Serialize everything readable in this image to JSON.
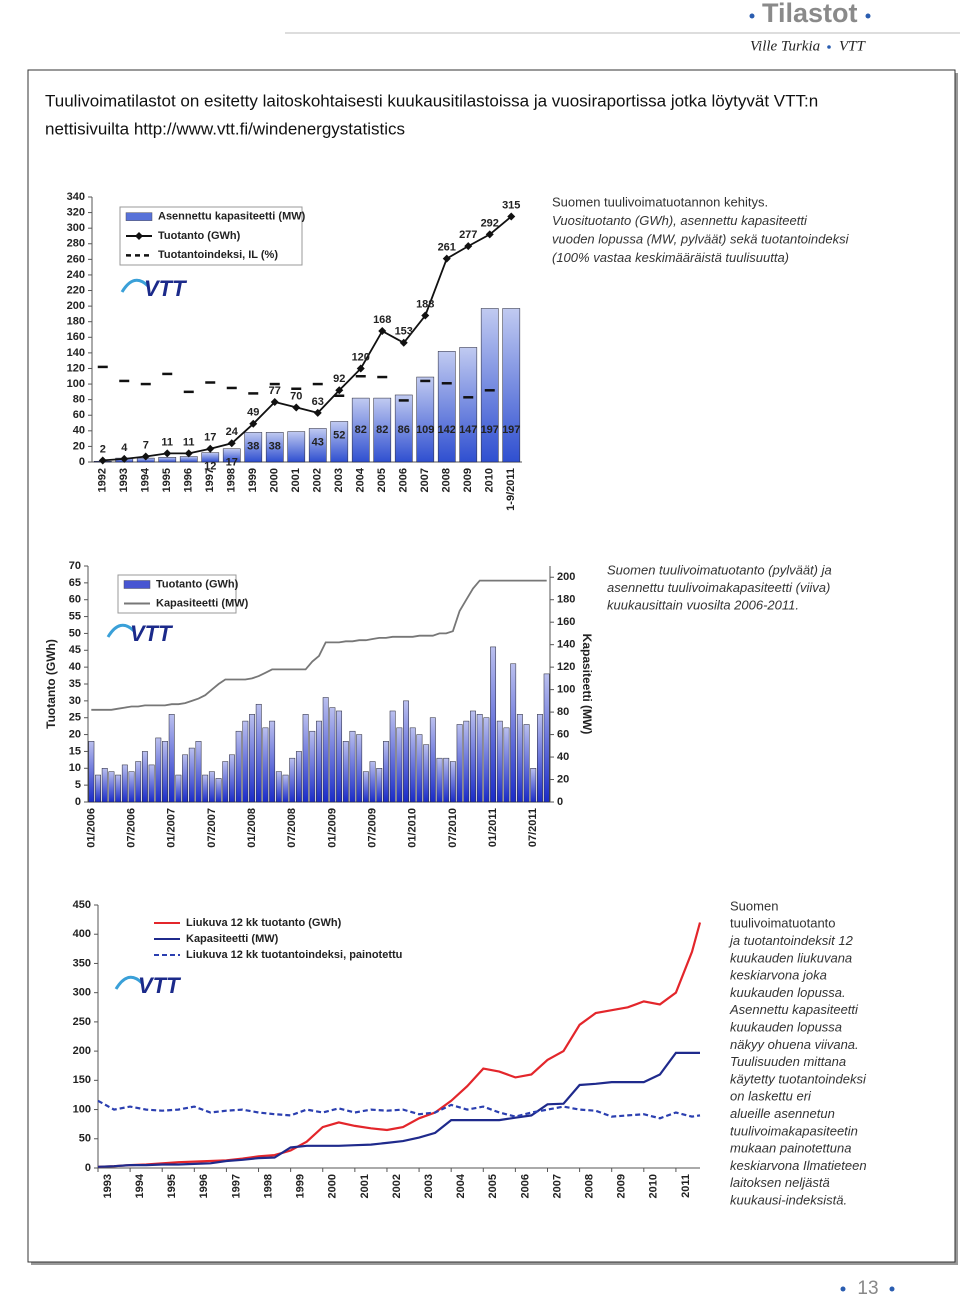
{
  "header": {
    "section": "Tilastot",
    "author": "Ville Turkia",
    "org": "VTT"
  },
  "intro": {
    "lines": [
      "Tuulivoimatilastot on esitetty laitoskohtaisesti kuukausitilastoissa ja vuosiraportissa jotka löytyvät VTT:n",
      "nettisivuilta http://www.vtt.fi/windenergystatistics"
    ]
  },
  "logo": "VTT",
  "chart_data": [
    {
      "type": "bar",
      "caption": [
        "Suomen tuulivoimatuotannon kehitys.",
        "Vuosituotanto (GWh), asennettu kapasiteetti",
        "vuoden lopussa (MW, pylväät) sekä tuotantoindeksi",
        "(100% vastaa keskimääräistä tuulisuutta)"
      ],
      "categories": [
        "1992",
        "1993",
        "1994",
        "1995",
        "1996",
        "1997",
        "1998",
        "1999",
        "2000",
        "2001",
        "2002",
        "2003",
        "2004",
        "2005",
        "2006",
        "2007",
        "2008",
        "2009",
        "2010",
        "1-9/2011"
      ],
      "series": [
        {
          "name": "Asennettu kapasiteetti (MW)",
          "type": "bar",
          "color": "#2f4fd0",
          "values": [
            1,
            5,
            5,
            6,
            7,
            12,
            17,
            38,
            38,
            39,
            43,
            52,
            82,
            82,
            86,
            109,
            142,
            147,
            197,
            197
          ],
          "value_labels": [
            null,
            null,
            null,
            null,
            null,
            "12",
            "17",
            "38",
            "38",
            null,
            "43",
            "52",
            "82",
            "82",
            "86",
            "109",
            "142",
            "147",
            "197",
            "197"
          ]
        },
        {
          "name": "Tuotanto (GWh)",
          "type": "line",
          "color": "#111111",
          "marker": "diamond",
          "data_labels": true,
          "values": [
            2,
            4,
            7,
            11,
            11,
            17,
            24,
            49,
            77,
            70,
            63,
            92,
            120,
            168,
            153,
            188,
            261,
            277,
            292,
            315
          ]
        },
        {
          "name": "Tuotantoindeksi, IL (%)",
          "type": "dash",
          "color": "#111111",
          "values": [
            122,
            104,
            100,
            113,
            90,
            102,
            95,
            88,
            100,
            94,
            100,
            85,
            110,
            109,
            79,
            104,
            101,
            83,
            92,
            null
          ]
        }
      ],
      "ylim": [
        0,
        340
      ],
      "yticks": [
        0,
        20,
        40,
        60,
        80,
        100,
        120,
        140,
        160,
        180,
        200,
        220,
        240,
        260,
        280,
        300,
        320,
        340
      ],
      "grid": false
    },
    {
      "type": "bar",
      "caption": [
        "Suomen tuulivoimatuotanto (pylväät) ja",
        "asennettu tuulivoimakapasiteetti (viiva)",
        "kuukausittain vuosilta 2006-2011."
      ],
      "ylabel": "Tuotanto (GWh)",
      "y2label": "Kapasiteetti (MW)",
      "categories": [
        "01/2006",
        null,
        null,
        null,
        null,
        null,
        "07/2006",
        null,
        null,
        null,
        null,
        null,
        "01/2007",
        null,
        null,
        null,
        null,
        null,
        "07/2007",
        null,
        null,
        null,
        null,
        null,
        "01/2008",
        null,
        null,
        null,
        null,
        null,
        "07/2008",
        null,
        null,
        null,
        null,
        null,
        "01/2009",
        null,
        null,
        null,
        null,
        null,
        "07/2009",
        null,
        null,
        null,
        null,
        null,
        "01/2010",
        null,
        null,
        null,
        null,
        null,
        "07/2010",
        null,
        null,
        null,
        null,
        null,
        "01/2011",
        null,
        null,
        null,
        null,
        null,
        "07/2011",
        null,
        null
      ],
      "series": [
        {
          "name": "Tuotanto (GWh)",
          "type": "bar",
          "color": "#1a2bc8",
          "values": [
            18,
            8,
            10,
            9,
            8,
            11,
            9,
            12,
            15,
            11,
            19,
            18,
            26,
            8,
            14,
            16,
            18,
            8,
            9,
            7,
            12,
            14,
            21,
            24,
            26,
            29,
            22,
            24,
            9,
            8,
            13,
            15,
            26,
            21,
            24,
            31,
            28,
            27,
            18,
            21,
            20,
            9,
            12,
            10,
            18,
            27,
            22,
            30,
            22,
            20,
            17,
            25,
            13,
            13,
            12,
            23,
            24,
            27,
            26,
            25,
            46,
            24,
            22,
            41,
            26,
            23,
            10,
            26,
            38
          ]
        },
        {
          "name": "Kapasiteetti (MW)",
          "type": "line",
          "color": "#777777",
          "axis": "y2",
          "values": [
            82,
            82,
            82,
            82,
            83,
            84,
            85,
            85,
            86,
            86,
            86,
            86,
            87,
            87,
            88,
            90,
            92,
            95,
            100,
            105,
            109,
            109,
            109,
            109,
            110,
            112,
            115,
            118,
            118,
            118,
            118,
            118,
            118,
            125,
            130,
            142,
            142,
            142,
            143,
            143,
            144,
            144,
            145,
            146,
            146,
            147,
            147,
            147,
            147,
            148,
            148,
            148,
            150,
            150,
            152,
            170,
            180,
            190,
            197,
            197,
            197,
            197,
            197,
            197,
            197,
            197,
            197,
            197,
            197
          ]
        }
      ],
      "ylim": [
        0,
        70
      ],
      "yticks": [
        0,
        5,
        10,
        15,
        20,
        25,
        30,
        35,
        40,
        45,
        50,
        55,
        60,
        65,
        70
      ],
      "y2lim": [
        0,
        210
      ],
      "y2ticks": [
        0,
        20,
        40,
        60,
        80,
        100,
        120,
        140,
        160,
        180,
        200
      ],
      "grid": false
    },
    {
      "type": "line",
      "caption": [
        "Suomen",
        "tuulivoimatuotanto",
        "ja tuotantoindeksit 12",
        "kuukauden liukuvana",
        "keskiarvona joka",
        "kuukauden lopussa.",
        "Asennettu kapasiteetti",
        "kuukauden lopussa",
        "näkyy ohuena viivana.",
        "Tuulisuuden mittana",
        "käytetty tuotantoindeksi",
        "on laskettu eri",
        "alueille asennetun",
        "tuulivoimakapasiteetin",
        "mukaan painotettuna",
        "keskiarvona Ilmatieteen",
        "laitoksen neljästä",
        "kuukausi-indeksistä."
      ],
      "x": [
        1993,
        1993.5,
        1994,
        1994.5,
        1995,
        1995.5,
        1996,
        1996.5,
        1997,
        1997.5,
        1998,
        1998.5,
        1999,
        1999.5,
        2000,
        2000.5,
        2001,
        2001.5,
        2002,
        2002.5,
        2003,
        2003.5,
        2004,
        2004.5,
        2005,
        2005.5,
        2006,
        2006.5,
        2007,
        2007.5,
        2008,
        2008.5,
        2009,
        2009.5,
        2010,
        2010.5,
        2011,
        2011.5,
        2011.75
      ],
      "series": [
        {
          "name": "Liukuva 12 kk tuotanto (GWh)",
          "type": "line",
          "color": "#e3262b",
          "values": [
            2,
            3,
            5,
            6,
            8,
            10,
            11,
            12,
            13,
            16,
            20,
            22,
            30,
            45,
            70,
            78,
            72,
            68,
            65,
            70,
            85,
            95,
            115,
            140,
            170,
            165,
            155,
            160,
            185,
            200,
            245,
            265,
            270,
            275,
            285,
            280,
            300,
            370,
            420
          ]
        },
        {
          "name": "Kapasiteetti (MW)",
          "type": "line",
          "color": "#1f2a8c",
          "values": [
            2,
            3,
            5,
            5,
            6,
            6,
            7,
            8,
            12,
            14,
            17,
            18,
            35,
            38,
            38,
            38,
            39,
            40,
            43,
            46,
            52,
            60,
            82,
            82,
            82,
            82,
            86,
            90,
            109,
            110,
            142,
            144,
            147,
            147,
            147,
            160,
            197,
            197,
            197
          ]
        },
        {
          "name": "Liukuva 12 kk tuotantoindeksi, painotettu",
          "type": "line",
          "color": "#2b3fb0",
          "dashed": true,
          "values": [
            115,
            100,
            105,
            100,
            98,
            100,
            105,
            95,
            98,
            100,
            95,
            92,
            90,
            100,
            95,
            102,
            95,
            100,
            98,
            100,
            92,
            95,
            108,
            100,
            105,
            95,
            88,
            95,
            100,
            105,
            100,
            98,
            88,
            90,
            92,
            85,
            95,
            88,
            90
          ]
        }
      ],
      "xlim": [
        1993,
        2011.75
      ],
      "xticks": [
        1993,
        1994,
        1995,
        1996,
        1997,
        1998,
        1999,
        2000,
        2001,
        2002,
        2003,
        2004,
        2005,
        2006,
        2007,
        2008,
        2009,
        2010,
        2011
      ],
      "ylim": [
        0,
        450
      ],
      "yticks": [
        0,
        50,
        100,
        150,
        200,
        250,
        300,
        350,
        400,
        450
      ],
      "grid": false
    }
  ],
  "footer": {
    "page": "13"
  }
}
